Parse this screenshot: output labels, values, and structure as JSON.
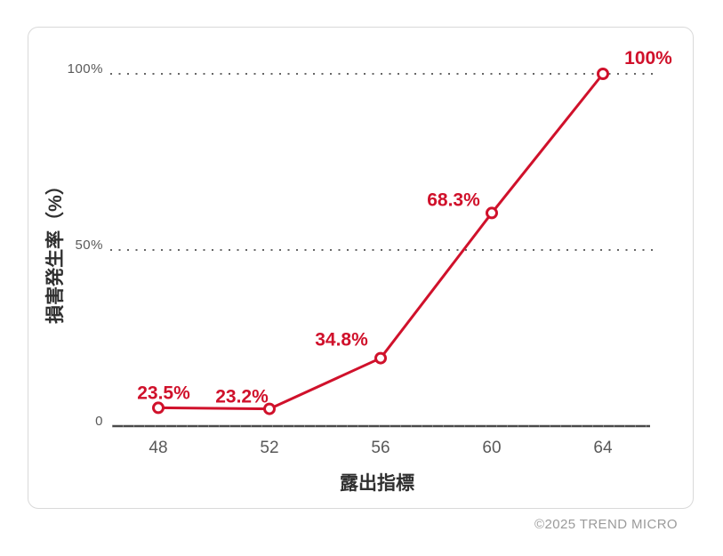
{
  "card": {
    "border_color": "#d9d9d9",
    "background": "#ffffff"
  },
  "footer": {
    "copyright": "©2025 TREND MICRO"
  },
  "chart_data": {
    "type": "line",
    "title": "",
    "xlabel": "露出指標",
    "ylabel": "損害発生率（%）",
    "x": [
      48,
      52,
      56,
      60,
      64
    ],
    "values": [
      23.5,
      23.2,
      34.8,
      68.3,
      100
    ],
    "point_labels": [
      "23.5%",
      "23.2%",
      "34.8%",
      "68.3%",
      "100%"
    ],
    "series": [
      {
        "name": "損害発生率",
        "values": [
          23.5,
          23.2,
          34.8,
          68.3,
          100
        ]
      }
    ],
    "ylim": [
      0,
      100
    ],
    "yticks": [
      {
        "label": "0",
        "value": 0
      },
      {
        "label": "50%",
        "value": 50
      },
      {
        "label": "100%",
        "value": 100
      }
    ],
    "xticks": [
      "48",
      "52",
      "56",
      "60",
      "64"
    ],
    "gridlines": {
      "style": "dotted",
      "orientation": "horizontal",
      "values": [
        50,
        100
      ]
    },
    "legend": "none",
    "colors": {
      "line": "#d0112b",
      "marker_fill": "#ffffff",
      "marker_stroke": "#d0112b",
      "axis_line": "#4a4a4a",
      "grid_dots": "#666666",
      "tick_labels": "#595959",
      "axis_titles": "#2f2f2f",
      "point_labels": "#d0112b"
    },
    "marker": "open-circle",
    "plotted_y_percent": [
      5.2,
      4.9,
      19.3,
      60.5,
      100
    ]
  }
}
